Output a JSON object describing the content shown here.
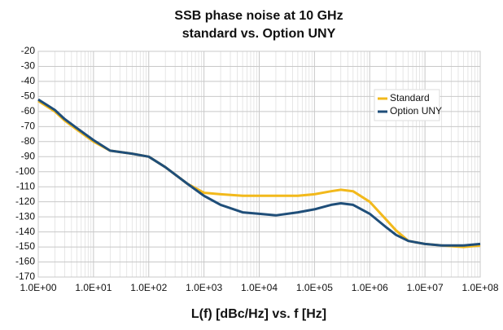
{
  "chart_data": {
    "type": "line",
    "title": "SSB phase noise at 10 GHz",
    "subtitle": "standard vs. Option UNY",
    "x_label": "L(f) [dBc/Hz] vs. f [Hz]",
    "xscale": "log",
    "grid": true,
    "minor_grid": true,
    "legend": "upper right",
    "x": [
      1,
      2,
      3,
      5,
      10,
      20,
      50,
      100,
      200,
      500,
      1000,
      2000,
      5000,
      10000,
      20000,
      50000,
      100000,
      200000,
      300000,
      500000,
      1000000,
      2000000,
      3000000,
      5000000,
      10000000,
      20000000,
      50000000,
      100000000
    ],
    "series": [
      {
        "name": "Standard",
        "color": "#f2b91c",
        "values": [
          -53,
          -60,
          -66,
          -72,
          -80,
          -86,
          -88,
          -90,
          -97,
          -108,
          -114,
          -115,
          -116,
          -116,
          -116,
          -116,
          -115,
          -113,
          -112,
          -113,
          -120,
          -132,
          -139,
          -146,
          -148,
          -149,
          -150,
          -149
        ]
      },
      {
        "name": "Option UNY",
        "color": "#1f4e79",
        "values": [
          -52,
          -59,
          -65,
          -71,
          -79,
          -86,
          -88,
          -90,
          -97,
          -108,
          -116,
          -122,
          -127,
          -128,
          -129,
          -127,
          -125,
          -122,
          -121,
          -122,
          -128,
          -137,
          -142,
          -146,
          -148,
          -149,
          -149,
          -148
        ]
      }
    ],
    "xlim": [
      1,
      100000000
    ],
    "xticks": [
      {
        "value": 1,
        "label": "1.0E+00"
      },
      {
        "value": 10,
        "label": "1.0E+01"
      },
      {
        "value": 100,
        "label": "1.0E+02"
      },
      {
        "value": 1000,
        "label": "1.0E+03"
      },
      {
        "value": 10000,
        "label": "1.0E+04"
      },
      {
        "value": 100000,
        "label": "1.0E+05"
      },
      {
        "value": 1000000,
        "label": "1.0E+06"
      },
      {
        "value": 10000000,
        "label": "1.0E+07"
      },
      {
        "value": 100000000,
        "label": "1.0E+08"
      }
    ],
    "ylim": [
      -170,
      -20
    ],
    "yticks": [
      -170,
      -160,
      -150,
      -140,
      -130,
      -120,
      -110,
      -100,
      -90,
      -80,
      -70,
      -60,
      -50,
      -40,
      -30,
      -20
    ]
  }
}
